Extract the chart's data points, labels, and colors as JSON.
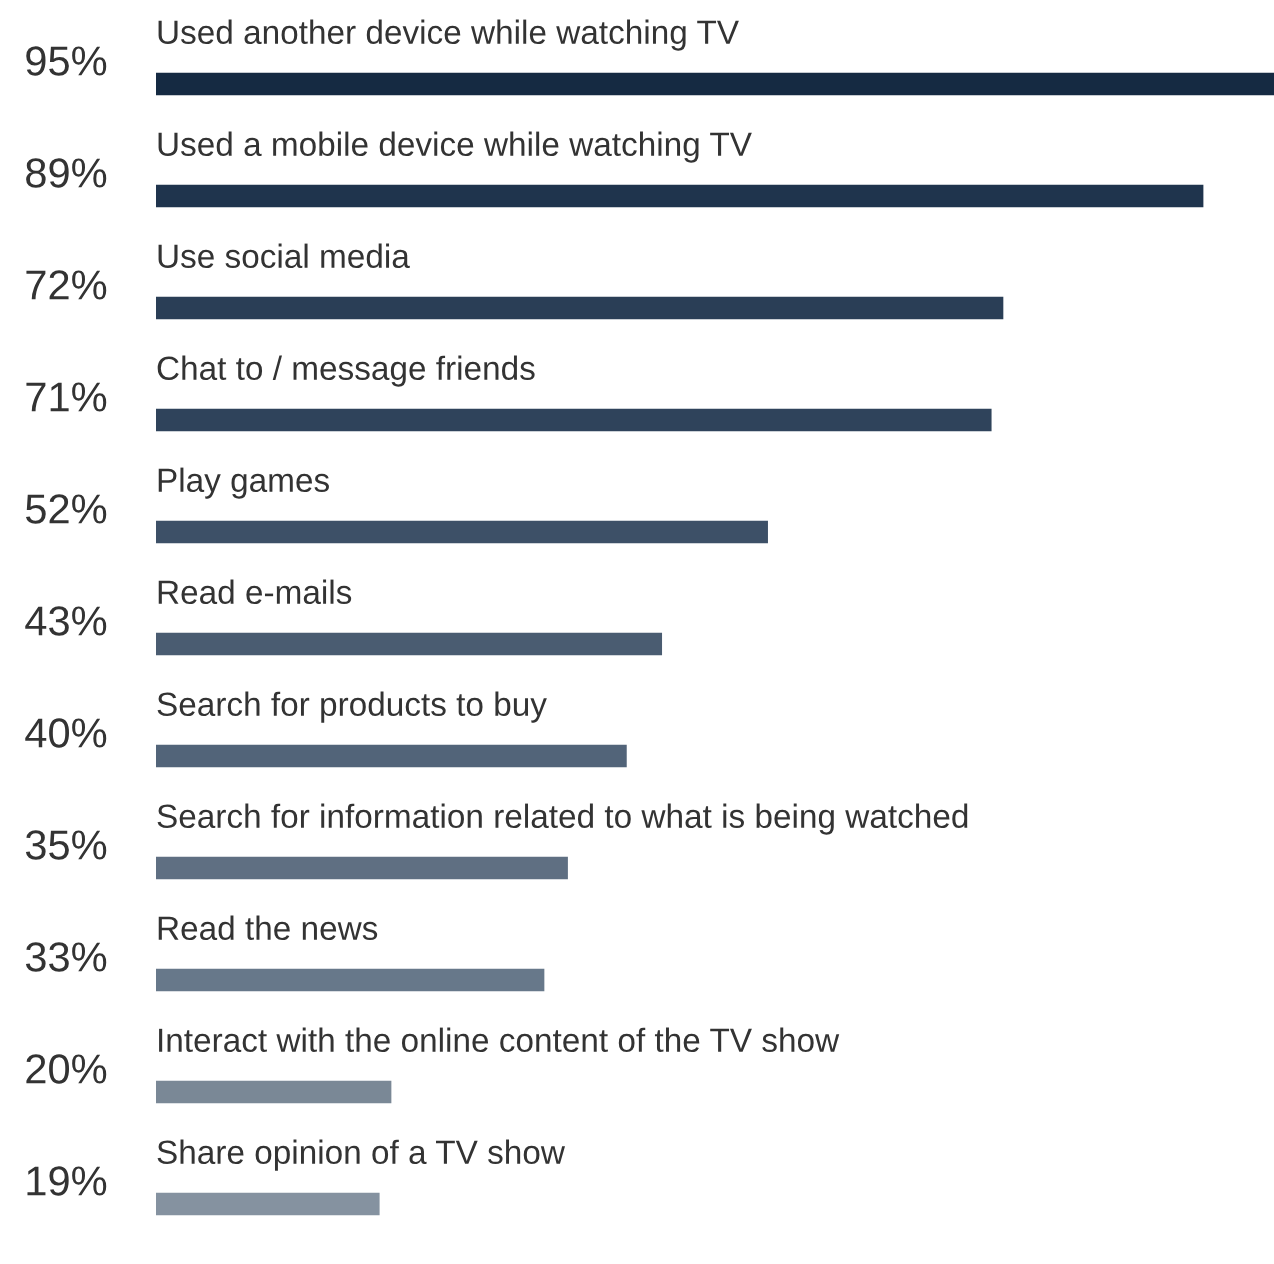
{
  "chart_data": {
    "type": "bar",
    "orientation": "horizontal",
    "categories": [
      "Used another device while watching TV",
      "Used a mobile device while watching TV",
      "Use social media",
      "Chat to / message friends",
      "Play games",
      "Read e-mails",
      "Search for products to buy",
      "Search for information related to what is being watched",
      "Read the news",
      "Interact with the online content of the TV show",
      "Share opinion of a TV show"
    ],
    "values": [
      95,
      89,
      72,
      71,
      52,
      43,
      40,
      35,
      33,
      20,
      19
    ],
    "value_labels": [
      "95%",
      "89%",
      "72%",
      "71%",
      "52%",
      "43%",
      "40%",
      "35%",
      "33%",
      "20%",
      "19%"
    ],
    "colors": [
      "#152a42",
      "#1f344d",
      "#2a3e56",
      "#2f435b",
      "#3d5067",
      "#4a5c71",
      "#526479",
      "#5f6f82",
      "#67788a",
      "#7a8896",
      "#8592a0"
    ]
  }
}
